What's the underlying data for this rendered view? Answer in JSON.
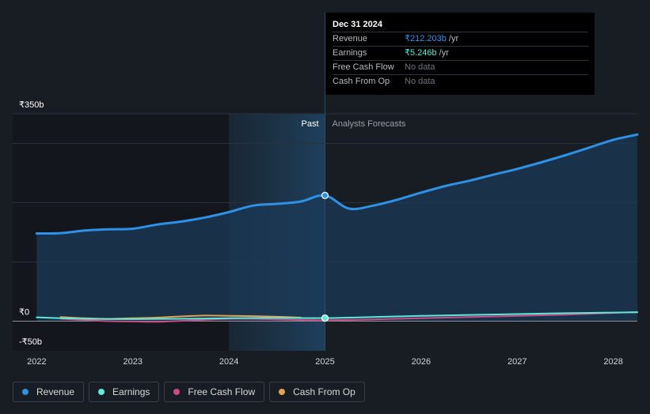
{
  "tooltip": {
    "date": "Dec 31 2024",
    "rows": [
      {
        "label": "Revenue",
        "value": "₹212.203b",
        "unit": "/yr"
      },
      {
        "label": "Earnings",
        "value": "₹5.246b",
        "unit": "/yr"
      },
      {
        "label": "Free Cash Flow",
        "value": "No data"
      },
      {
        "label": "Cash From Op",
        "value": "No data"
      }
    ]
  },
  "legend": [
    {
      "label": "Revenue",
      "color": "#2e91e5"
    },
    {
      "label": "Earnings",
      "color": "#5ee8d5"
    },
    {
      "label": "Free Cash Flow",
      "color": "#c94b89"
    },
    {
      "label": "Cash From Op",
      "color": "#e0a456"
    }
  ],
  "chart_data": {
    "type": "line",
    "y_tick_labels": [
      {
        "value": 350,
        "label": "₹350b"
      },
      {
        "value": 0,
        "label": "₹0"
      },
      {
        "value": -50,
        "label": "-₹50b"
      }
    ],
    "ylim": [
      -50,
      350
    ],
    "xlim": [
      2021.75,
      2028.25
    ],
    "x_tick_labels": [
      "2022",
      "2023",
      "2024",
      "2025",
      "2026",
      "2027",
      "2028"
    ],
    "x_tick_values": [
      2022,
      2023,
      2024,
      2025,
      2026,
      2027,
      2028
    ],
    "past_label": "Past",
    "forecast_label": "Analysts Forecasts",
    "divider_x": 2025.0,
    "highlight_start": 2024.0,
    "grid": true,
    "series": [
      {
        "name": "Revenue",
        "color": "#2e91e5",
        "points": [
          [
            2022.0,
            148
          ],
          [
            2022.25,
            148.5
          ],
          [
            2022.5,
            153
          ],
          [
            2022.75,
            155
          ],
          [
            2023.0,
            156
          ],
          [
            2023.25,
            163
          ],
          [
            2023.5,
            168
          ],
          [
            2023.75,
            175
          ],
          [
            2024.0,
            184
          ],
          [
            2024.25,
            195
          ],
          [
            2024.5,
            198
          ],
          [
            2024.75,
            202
          ],
          [
            2025.0,
            212.2
          ],
          [
            2025.25,
            190
          ],
          [
            2025.5,
            195
          ],
          [
            2025.75,
            205
          ],
          [
            2026.0,
            217
          ],
          [
            2026.25,
            228
          ],
          [
            2026.5,
            237
          ],
          [
            2026.75,
            247
          ],
          [
            2027.0,
            257
          ],
          [
            2027.25,
            268
          ],
          [
            2027.5,
            280
          ],
          [
            2027.75,
            293
          ],
          [
            2028.0,
            306
          ],
          [
            2028.25,
            315
          ]
        ]
      },
      {
        "name": "Earnings",
        "color": "#5ee8d5",
        "points": [
          [
            2022.0,
            6.5
          ],
          [
            2022.25,
            5.0
          ],
          [
            2022.5,
            4.0
          ],
          [
            2022.75,
            3.5
          ],
          [
            2023.0,
            3.5
          ],
          [
            2023.5,
            4.0
          ],
          [
            2024.0,
            5.0
          ],
          [
            2024.5,
            5.5
          ],
          [
            2025.0,
            5.2
          ],
          [
            2025.5,
            7.0
          ],
          [
            2026.0,
            9.0
          ],
          [
            2026.5,
            10.5
          ],
          [
            2027.0,
            12.0
          ],
          [
            2027.5,
            13.5
          ],
          [
            2028.0,
            14.5
          ],
          [
            2028.25,
            15.0
          ]
        ]
      },
      {
        "name": "Free Cash Flow",
        "color": "#c94b89",
        "points": [
          [
            2022.25,
            4.0
          ],
          [
            2022.5,
            2.0
          ],
          [
            2022.75,
            0.0
          ],
          [
            2023.0,
            -0.5
          ],
          [
            2023.25,
            -1.0
          ],
          [
            2023.5,
            0.5
          ],
          [
            2023.75,
            2.5
          ],
          [
            2024.0,
            4.0
          ],
          [
            2024.25,
            4.0
          ],
          [
            2024.5,
            3.0
          ],
          [
            2024.75,
            2.0
          ],
          [
            2025.0,
            1.5
          ],
          [
            2025.5,
            3.0
          ],
          [
            2026.0,
            5.0
          ],
          [
            2026.5,
            7.0
          ],
          [
            2027.0,
            9.0
          ],
          [
            2027.5,
            11.0
          ],
          [
            2028.0,
            14.0
          ],
          [
            2028.25,
            15.5
          ]
        ]
      },
      {
        "name": "Cash From Op",
        "color": "#e0a456",
        "points": [
          [
            2022.25,
            7.0
          ],
          [
            2022.5,
            5.0
          ],
          [
            2022.75,
            4.0
          ],
          [
            2023.0,
            5.0
          ],
          [
            2023.25,
            6.0
          ],
          [
            2023.5,
            8.0
          ],
          [
            2023.75,
            9.5
          ],
          [
            2024.0,
            9.0
          ],
          [
            2024.25,
            8.5
          ],
          [
            2024.5,
            7.5
          ],
          [
            2024.75,
            6.0
          ]
        ]
      }
    ],
    "highlight_points": [
      {
        "series": "Revenue",
        "x": 2025.0,
        "y": 212.2
      },
      {
        "series": "Earnings",
        "x": 2025.0,
        "y": 5.2
      }
    ]
  }
}
